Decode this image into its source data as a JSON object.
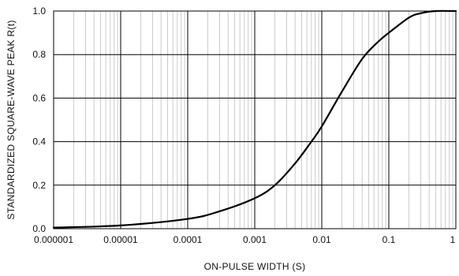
{
  "chart_data": {
    "type": "line",
    "title": "",
    "xlabel": "ON-PULSE  WIDTH  (S)",
    "ylabel": "STANDARDIZED  SQUARE-WAVE PEAK R(t)",
    "x_scale": "log",
    "xlim": [
      1e-06,
      1
    ],
    "ylim": [
      0,
      1.0
    ],
    "grid": true,
    "x_ticks": [
      1e-06,
      1e-05,
      0.0001,
      0.001,
      0.01,
      0.1,
      1
    ],
    "x_tick_labels": [
      "0.000001",
      "0.00001",
      "0.0001",
      "0.001",
      "0.01",
      "0.1",
      "1"
    ],
    "y_ticks": [
      0,
      0.2,
      0.4,
      0.6,
      0.8,
      1.0
    ],
    "y_tick_labels": [
      "0.0",
      "0.2",
      "0.4",
      "0.6",
      "0.8",
      "1.0"
    ],
    "series": [
      {
        "color": "#000000",
        "x": [
          1e-06,
          1e-05,
          0.0001,
          0.0003,
          0.001,
          0.002,
          0.004,
          0.007,
          0.01,
          0.02,
          0.04,
          0.07,
          0.1,
          0.2,
          0.3,
          0.5,
          1
        ],
        "y": [
          0.005,
          0.015,
          0.045,
          0.08,
          0.14,
          0.2,
          0.3,
          0.4,
          0.47,
          0.63,
          0.78,
          0.86,
          0.9,
          0.97,
          0.99,
          1.0,
          1.0
        ]
      }
    ]
  }
}
